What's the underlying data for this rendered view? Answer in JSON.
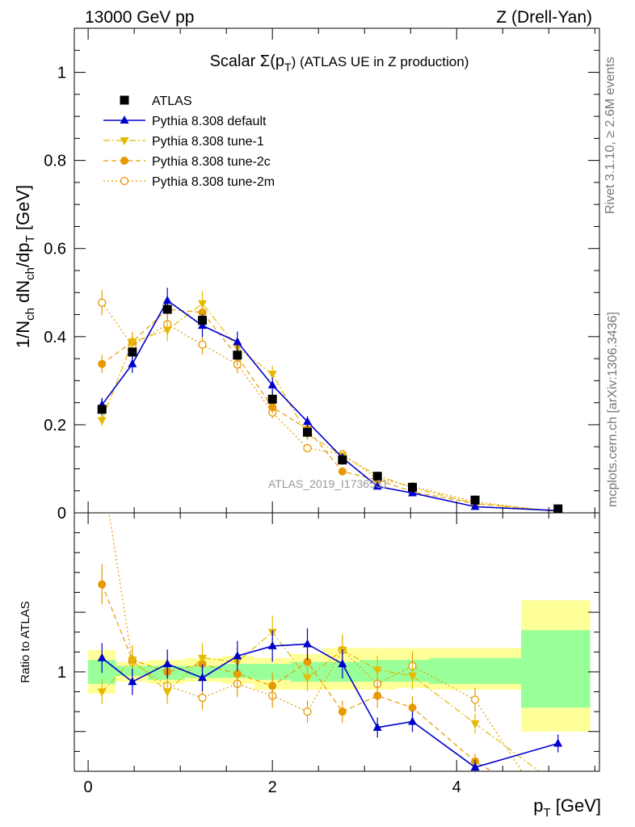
{
  "header": {
    "left": "13000 GeV pp",
    "right": "Z (Drell-Yan)"
  },
  "side_notes": {
    "right_top": "Rivet 3.1.10, ≥ 2.6M events",
    "right_bottom": "mcplots.cern.ch [arXiv:1306.3436]"
  },
  "watermark": "ATLAS_2019_I1736531",
  "colors": {
    "atlas": "#000000",
    "default": "#0000cc",
    "tune1": "#e6b800",
    "tune2c": "#e69900",
    "tune2m": "#e69900",
    "band_stat": "#99ff99",
    "band_total": "#ffff99"
  },
  "chart_data": [
    {
      "type": "scatter",
      "panel": "main",
      "title": "Scalar Σ(p_T) (ATLAS UE in Z production)",
      "title_main": "Scalar Σ(p",
      "title_sub": "T",
      "title_tail": ") (ATLAS UE in Z production)",
      "ylabel": "1/N_ch dN_ch/dp_T [GeV]",
      "xlim": [
        -0.15,
        5.55
      ],
      "ylim": [
        0,
        1.1
      ],
      "yticks": [
        "0",
        "0.2",
        "0.4",
        "0.6",
        "0.8",
        "1"
      ],
      "ytick_values": [
        0,
        0.2,
        0.4,
        0.6,
        0.8,
        1.0
      ],
      "legend_position": "top-left",
      "x": [
        0.15,
        0.48,
        0.86,
        1.24,
        1.62,
        2.0,
        2.38,
        2.76,
        3.14,
        3.52,
        4.2,
        5.1
      ],
      "series": [
        {
          "name": "ATLAS",
          "key": "atlas",
          "marker": "square",
          "values": [
            0.235,
            0.365,
            0.462,
            0.437,
            0.358,
            0.258,
            0.183,
            0.12,
            0.083,
            0.058,
            0.029,
            0.009
          ]
        },
        {
          "name": "Pythia 8.308 default",
          "key": "default",
          "marker": "triangle-up",
          "line": "solid",
          "values": [
            0.245,
            0.338,
            0.482,
            0.425,
            0.388,
            0.29,
            0.207,
            0.125,
            0.06,
            0.045,
            0.014,
            0.005
          ]
        },
        {
          "name": "Pythia 8.308 tune-1",
          "key": "tune1",
          "marker": "triangle-down",
          "line": "dashdot",
          "values": [
            0.21,
            0.388,
            0.415,
            0.475,
            0.375,
            0.315,
            0.178,
            0.13,
            0.085,
            0.057,
            0.021,
            0.004
          ]
        },
        {
          "name": "Pythia 8.308 tune-2c",
          "key": "tune2c",
          "marker": "circle",
          "line": "dashed",
          "values": [
            0.338,
            0.388,
            0.462,
            0.455,
            0.355,
            0.24,
            0.19,
            0.094,
            0.075,
            0.048,
            0.021,
            0.003
          ]
        },
        {
          "name": "Pythia 8.308 tune-2m",
          "key": "tune2m",
          "marker": "open-circle",
          "line": "dotted",
          "values": [
            0.477,
            0.38,
            0.428,
            0.382,
            0.337,
            0.228,
            0.147,
            0.133,
            0.078,
            0.06,
            0.025,
            0.002
          ]
        }
      ]
    },
    {
      "type": "line",
      "panel": "ratio",
      "ylabel": "Ratio to ATLAS",
      "xlabel": "p_T [GeV]",
      "xlim": [
        -0.15,
        5.55
      ],
      "ylim": [
        0.5,
        1.8
      ],
      "yticks": [
        "1"
      ],
      "ytick_values": [
        1
      ],
      "xticks": [
        "0",
        "2",
        "4"
      ],
      "xtick_values": [
        0,
        2,
        4
      ],
      "bands": {
        "edges": [
          0.0,
          0.3,
          0.65,
          1.05,
          1.45,
          1.8,
          2.2,
          2.55,
          2.95,
          3.35,
          3.7,
          4.7,
          5.45
        ],
        "stat_low": [
          0.94,
          0.98,
          0.96,
          0.97,
          0.97,
          0.96,
          0.95,
          0.95,
          0.95,
          0.95,
          0.94,
          0.82
        ],
        "stat_high": [
          1.06,
          1.03,
          1.03,
          1.03,
          1.04,
          1.04,
          1.05,
          1.05,
          1.06,
          1.06,
          1.07,
          1.21
        ],
        "total_low": [
          0.89,
          0.95,
          0.94,
          0.95,
          0.94,
          0.91,
          0.91,
          0.91,
          0.91,
          0.92,
          0.91,
          0.7
        ],
        "total_high": [
          1.11,
          1.05,
          1.06,
          1.07,
          1.08,
          1.07,
          1.09,
          1.12,
          1.12,
          1.12,
          1.12,
          1.36
        ]
      },
      "x": [
        0.15,
        0.48,
        0.86,
        1.24,
        1.62,
        2.0,
        2.38,
        2.76,
        3.14,
        3.52,
        4.2,
        5.1
      ],
      "series": [
        {
          "name": "Pythia 8.308 default",
          "key": "default",
          "marker": "triangle-up",
          "line": "solid",
          "values": [
            1.07,
            0.95,
            1.04,
            0.97,
            1.08,
            1.13,
            1.14,
            1.04,
            0.72,
            0.75,
            0.52,
            0.64
          ]
        },
        {
          "name": "Pythia 8.308 tune-1",
          "key": "tune1",
          "marker": "triangle-down",
          "line": "dashdot",
          "values": [
            0.9,
            1.06,
            0.9,
            1.07,
            1.05,
            1.2,
            0.97,
            1.11,
            1.01,
            0.98,
            0.74,
            0.43
          ]
        },
        {
          "name": "Pythia 8.308 tune-2c",
          "key": "tune2c",
          "marker": "circle",
          "line": "dashed",
          "values": [
            1.44,
            1.06,
            1.0,
            1.04,
            0.99,
            0.93,
            1.05,
            0.8,
            0.88,
            0.82,
            0.55,
            0.3
          ]
        },
        {
          "name": "Pythia 8.308 tune-2m",
          "key": "tune2m",
          "marker": "open-circle",
          "line": "dotted",
          "values": [
            2.03,
            1.05,
            0.93,
            0.87,
            0.94,
            0.88,
            0.8,
            1.11,
            0.94,
            1.03,
            0.86,
            0.22
          ]
        }
      ]
    }
  ]
}
